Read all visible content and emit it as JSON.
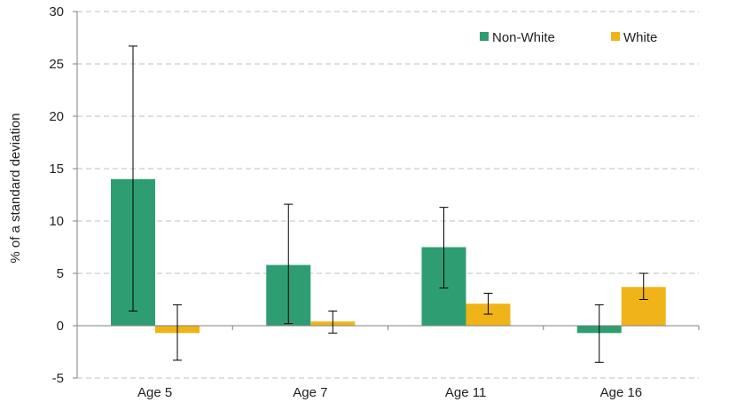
{
  "chart_data": {
    "type": "bar",
    "title": "",
    "xlabel": "",
    "ylabel": "% of a standard deviation",
    "ylim": [
      -5,
      30
    ],
    "yticks": [
      -5,
      0,
      5,
      10,
      15,
      20,
      25,
      30
    ],
    "ytick_labels": [
      "-5",
      "0",
      "5",
      "10",
      "15",
      "20",
      "25",
      "30"
    ],
    "grid": true,
    "legend_position": "top-right",
    "categories": [
      "Age 5",
      "Age 7",
      "Age 11",
      "Age 16"
    ],
    "series": [
      {
        "name": "Non-White",
        "color": "#2e9e72",
        "values": [
          14.0,
          5.8,
          7.5,
          -0.7
        ],
        "error_low": [
          1.4,
          0.2,
          3.6,
          -3.5
        ],
        "error_high": [
          26.7,
          11.6,
          11.3,
          2.0
        ]
      },
      {
        "name": "White",
        "color": "#f0b418",
        "values": [
          -0.7,
          0.4,
          2.1,
          3.7
        ],
        "error_low": [
          -3.3,
          -0.7,
          1.1,
          2.5
        ],
        "error_high": [
          2.0,
          1.4,
          3.1,
          5.0
        ]
      }
    ]
  }
}
